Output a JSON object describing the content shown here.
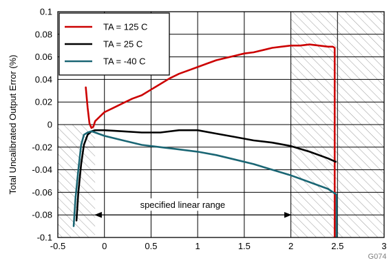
{
  "chart_data": {
    "type": "line",
    "title": "",
    "xlabel": "",
    "ylabel": "Total Uncalibrated Output Error (%)",
    "xlim": [
      -0.5,
      3
    ],
    "ylim": [
      -0.1,
      0.1
    ],
    "grid": true,
    "x_ticks": [
      -0.5,
      0,
      0.5,
      1,
      1.5,
      2,
      2.5,
      3
    ],
    "x_tick_labels": [
      "-0.5",
      "0",
      "0.5",
      "1",
      "1.5",
      "2",
      "2.5",
      "3"
    ],
    "y_ticks": [
      -0.1,
      -0.08,
      -0.06,
      -0.04,
      -0.02,
      0,
      0.02,
      0.04,
      0.06,
      0.08,
      0.1
    ],
    "y_tick_labels": [
      "-0.1",
      "-0.08",
      "-0.06",
      "-0.04",
      "-0.02",
      "0",
      "0.02",
      "0.04",
      "0.06",
      "0.08",
      "0.1"
    ],
    "legend_position": "top-left",
    "series": [
      {
        "name": "TA = 125 C",
        "color": "#cc0000",
        "points": [
          [
            -0.2,
            0.033
          ],
          [
            -0.18,
            0.015
          ],
          [
            -0.16,
            0.001
          ],
          [
            -0.14,
            -0.003
          ],
          [
            -0.12,
            -0.002
          ],
          [
            -0.1,
            0.003
          ],
          [
            -0.05,
            0.007
          ],
          [
            0,
            0.011
          ],
          [
            0.1,
            0.015
          ],
          [
            0.2,
            0.019
          ],
          [
            0.3,
            0.023
          ],
          [
            0.4,
            0.026
          ],
          [
            0.5,
            0.031
          ],
          [
            0.6,
            0.036
          ],
          [
            0.7,
            0.041
          ],
          [
            0.8,
            0.045
          ],
          [
            0.9,
            0.048
          ],
          [
            1.0,
            0.051
          ],
          [
            1.1,
            0.054
          ],
          [
            1.2,
            0.057
          ],
          [
            1.3,
            0.059
          ],
          [
            1.4,
            0.061
          ],
          [
            1.5,
            0.063
          ],
          [
            1.6,
            0.064
          ],
          [
            1.7,
            0.066
          ],
          [
            1.8,
            0.068
          ],
          [
            1.9,
            0.069
          ],
          [
            2.0,
            0.07
          ],
          [
            2.1,
            0.07
          ],
          [
            2.2,
            0.071
          ],
          [
            2.3,
            0.07
          ],
          [
            2.4,
            0.069
          ],
          [
            2.45,
            0.069
          ],
          [
            2.47,
            0.068
          ],
          [
            2.47,
            -0.1
          ]
        ]
      },
      {
        "name": "TA = 25 C",
        "color": "#000000",
        "points": [
          [
            -0.3,
            -0.085
          ],
          [
            -0.28,
            -0.06
          ],
          [
            -0.25,
            -0.035
          ],
          [
            -0.22,
            -0.018
          ],
          [
            -0.18,
            -0.009
          ],
          [
            -0.14,
            -0.006
          ],
          [
            -0.1,
            -0.005
          ],
          [
            0,
            -0.005
          ],
          [
            0.2,
            -0.006
          ],
          [
            0.4,
            -0.007
          ],
          [
            0.6,
            -0.007
          ],
          [
            0.8,
            -0.005
          ],
          [
            1.0,
            -0.005
          ],
          [
            1.2,
            -0.008
          ],
          [
            1.4,
            -0.011
          ],
          [
            1.6,
            -0.014
          ],
          [
            1.8,
            -0.016
          ],
          [
            2.0,
            -0.019
          ],
          [
            2.2,
            -0.024
          ],
          [
            2.4,
            -0.03
          ],
          [
            2.48,
            -0.033
          ]
        ]
      },
      {
        "name": "TA = -40 C",
        "color": "#1a6674",
        "points": [
          [
            -0.33,
            -0.09
          ],
          [
            -0.31,
            -0.065
          ],
          [
            -0.28,
            -0.04
          ],
          [
            -0.25,
            -0.018
          ],
          [
            -0.22,
            -0.009
          ],
          [
            -0.18,
            -0.007
          ],
          [
            -0.14,
            -0.006
          ],
          [
            -0.1,
            -0.007
          ],
          [
            0,
            -0.01
          ],
          [
            0.2,
            -0.014
          ],
          [
            0.4,
            -0.018
          ],
          [
            0.6,
            -0.02
          ],
          [
            0.8,
            -0.022
          ],
          [
            1.0,
            -0.024
          ],
          [
            1.2,
            -0.027
          ],
          [
            1.4,
            -0.031
          ],
          [
            1.6,
            -0.035
          ],
          [
            1.8,
            -0.04
          ],
          [
            2.0,
            -0.045
          ],
          [
            2.2,
            -0.051
          ],
          [
            2.4,
            -0.057
          ],
          [
            2.49,
            -0.062
          ],
          [
            2.49,
            -0.1
          ]
        ]
      }
    ],
    "hatched_regions": [
      {
        "x0": -0.5,
        "x1": -0.1,
        "y0": -0.1,
        "y1": 0.0
      },
      {
        "x0": 2.0,
        "x1": 3.0,
        "y0": -0.1,
        "y1": 0.1
      }
    ],
    "annotation": {
      "text": "specified linear range",
      "x_from": -0.1,
      "x_to": 2.0,
      "y": -0.08
    },
    "figure_code": "G074"
  }
}
